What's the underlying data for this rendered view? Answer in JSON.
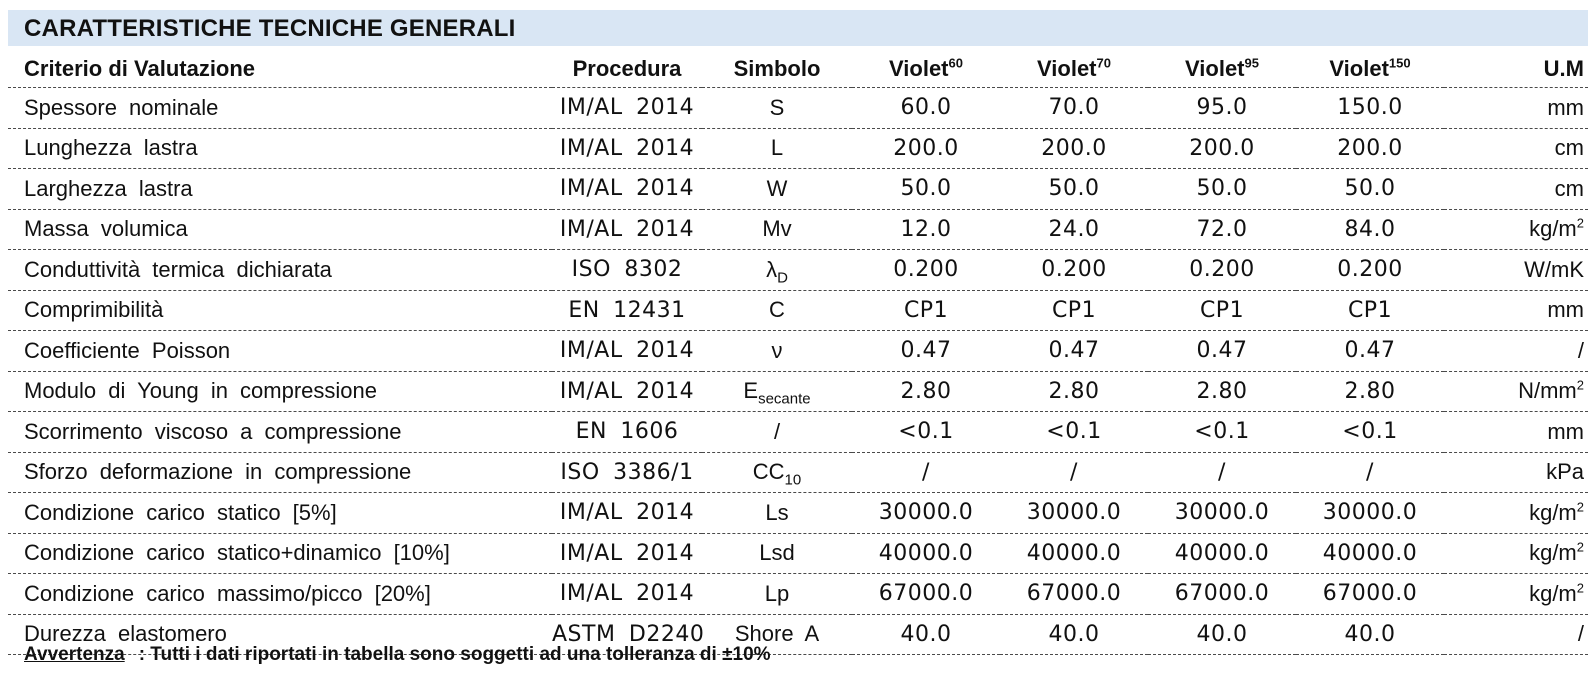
{
  "title": "CARATTERISTICHE TECNICHE GENERALI",
  "headers": {
    "criterio": "Criterio di Valutazione",
    "procedura": "Procedura",
    "simbolo": "Simbolo",
    "violet": "Violet",
    "um": "U.M",
    "variants": [
      "60",
      "70",
      "95",
      "150"
    ]
  },
  "rows": [
    {
      "crit": "Spessore nominale",
      "proc": "IM/AL 2014",
      "sym": "S",
      "sym_sub": "",
      "vals": [
        "60.0",
        "70.0",
        "95.0",
        "150.0"
      ],
      "um": "mm",
      "um_sup": ""
    },
    {
      "crit": "Lunghezza lastra",
      "proc": "IM/AL 2014",
      "sym": "L",
      "sym_sub": "",
      "vals": [
        "200.0",
        "200.0",
        "200.0",
        "200.0"
      ],
      "um": "cm",
      "um_sup": ""
    },
    {
      "crit": "Larghezza lastra",
      "proc": "IM/AL 2014",
      "sym": "W",
      "sym_sub": "",
      "vals": [
        "50.0",
        "50.0",
        "50.0",
        "50.0"
      ],
      "um": "cm",
      "um_sup": ""
    },
    {
      "crit": "Massa volumica",
      "proc": "IM/AL 2014",
      "sym": "Mv",
      "sym_sub": "",
      "vals": [
        "12.0",
        "24.0",
        "72.0",
        "84.0"
      ],
      "um": "kg/m",
      "um_sup": "2"
    },
    {
      "crit": "Conduttività termica dichiarata",
      "proc": "ISO 8302",
      "sym": "λ",
      "sym_sub": "D",
      "vals": [
        "0.200",
        "0.200",
        "0.200",
        "0.200"
      ],
      "um": "W/mK",
      "um_sup": ""
    },
    {
      "crit": "Comprimibilità",
      "proc": "EN 12431",
      "sym": "C",
      "sym_sub": "",
      "vals": [
        "CP1",
        "CP1",
        "CP1",
        "CP1"
      ],
      "um": "mm",
      "um_sup": ""
    },
    {
      "crit": "Coefficiente Poisson",
      "proc": "IM/AL 2014",
      "sym": "ν",
      "sym_sub": "",
      "vals": [
        "0.47",
        "0.47",
        "0.47",
        "0.47"
      ],
      "um": "/",
      "um_sup": ""
    },
    {
      "crit": "Modulo di Young in compressione",
      "proc": "IM/AL 2014",
      "sym": "E",
      "sym_sub": "secante",
      "vals": [
        "2.80",
        "2.80",
        "2.80",
        "2.80"
      ],
      "um": "N/mm",
      "um_sup": "2"
    },
    {
      "crit": "Scorrimento viscoso a compressione",
      "proc": "EN 1606",
      "sym": "/",
      "sym_sub": "",
      "vals": [
        "<0.1",
        "<0.1",
        "<0.1",
        "<0.1"
      ],
      "um": "mm",
      "um_sup": ""
    },
    {
      "crit": "Sforzo deformazione in compressione",
      "proc": "ISO 3386/1",
      "sym": "CC",
      "sym_sub": "10",
      "vals": [
        "/",
        "/",
        "/",
        "/"
      ],
      "um": "kPa",
      "um_sup": ""
    },
    {
      "crit": "Condizione carico statico [5%]",
      "proc": "IM/AL 2014",
      "sym": "Ls",
      "sym_sub": "",
      "vals": [
        "30000.0",
        "30000.0",
        "30000.0",
        "30000.0"
      ],
      "um": "kg/m",
      "um_sup": "2"
    },
    {
      "crit": "Condizione carico statico+dinamico [10%]",
      "proc": "IM/AL 2014",
      "sym": "Lsd",
      "sym_sub": "",
      "vals": [
        "40000.0",
        "40000.0",
        "40000.0",
        "40000.0"
      ],
      "um": "kg/m",
      "um_sup": "2"
    },
    {
      "crit": "Condizione carico massimo/picco [20%]",
      "proc": "IM/AL 2014",
      "sym": "Lp",
      "sym_sub": "",
      "vals": [
        "67000.0",
        "67000.0",
        "67000.0",
        "67000.0"
      ],
      "um": "kg/m",
      "um_sup": "2"
    },
    {
      "crit": "Durezza elastomero",
      "proc": "ASTM D2240",
      "sym": "Shore A",
      "sym_sub": "",
      "vals": [
        "40.0",
        "40.0",
        "40.0",
        "40.0"
      ],
      "um": "/",
      "um_sup": ""
    }
  ],
  "note": {
    "label": "Avvertenza",
    "text": "Tutti i dati riportati in tabella sono soggetti ad una tolleranza di ±10%"
  }
}
